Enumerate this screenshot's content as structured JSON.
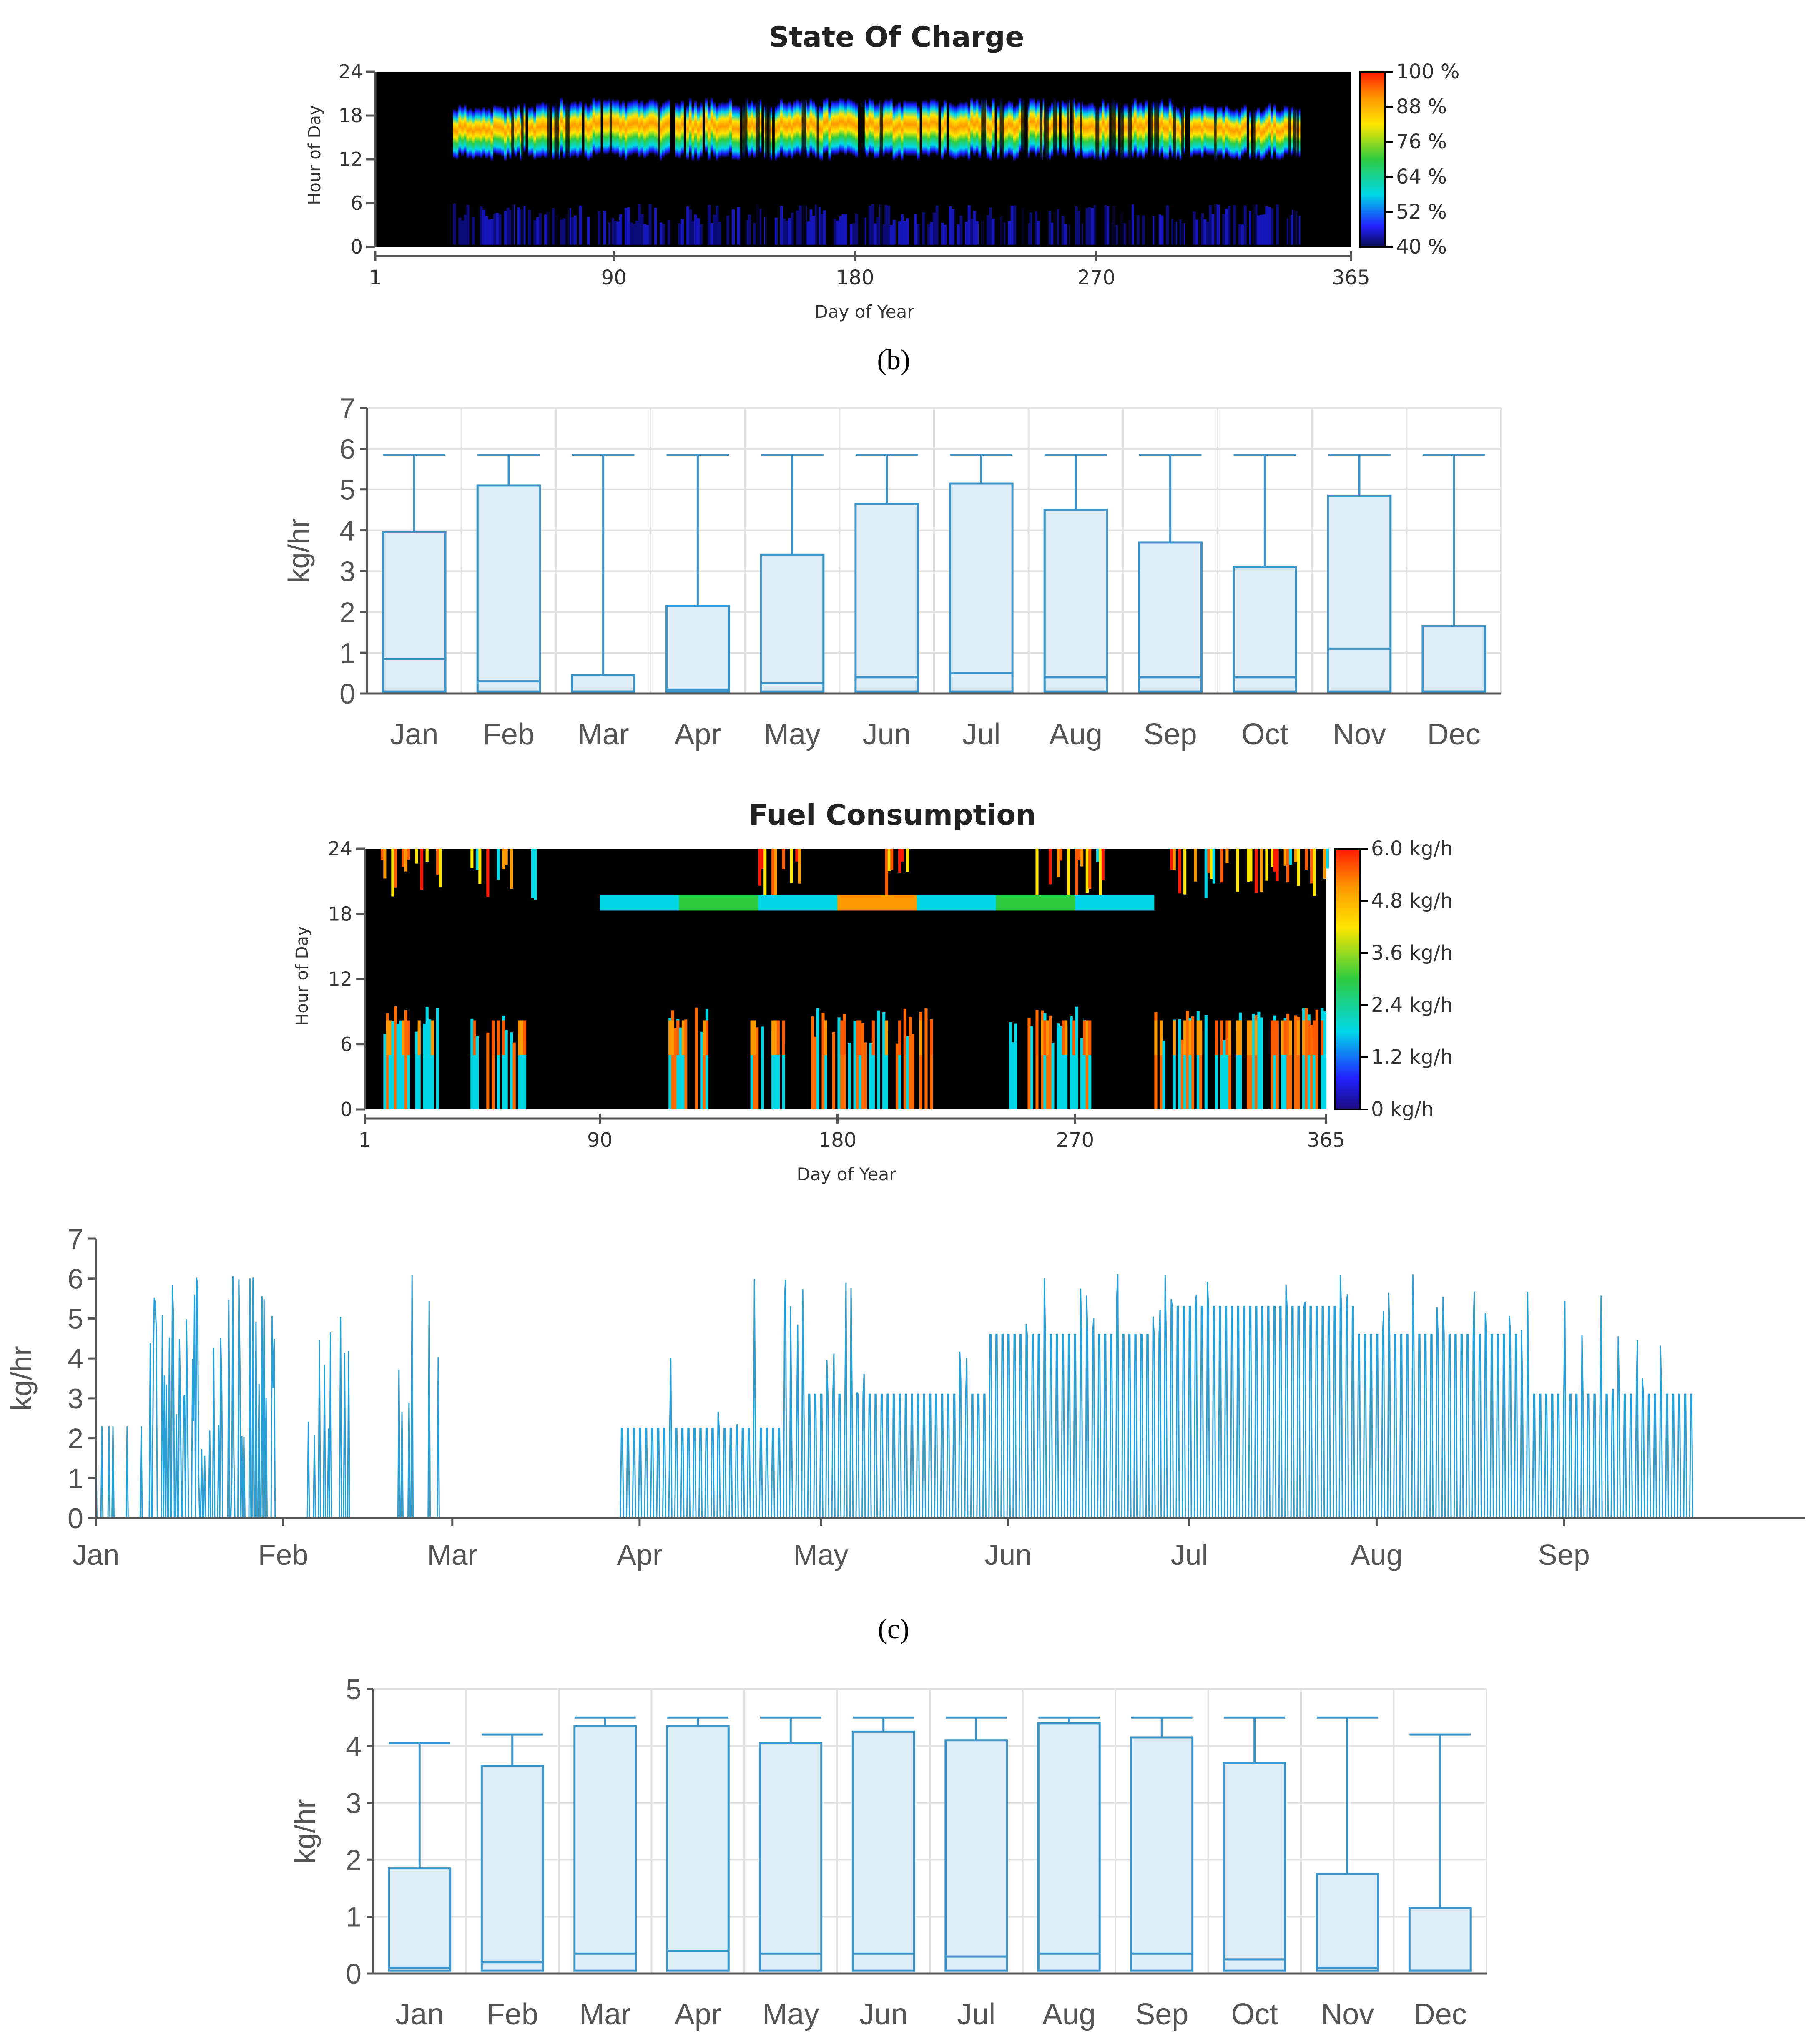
{
  "panel_labels": {
    "b": "(b)",
    "c": "(c)"
  },
  "chart_data": [
    {
      "id": "soc_heatmap",
      "type": "heatmap",
      "title": "State Of Charge",
      "xlabel": "Day of Year",
      "ylabel": "Hour of Day",
      "x_ticks": [
        "1",
        "90",
        "180",
        "270",
        "365"
      ],
      "y_ticks": [
        "0",
        "6",
        "12",
        "18",
        "24"
      ],
      "xlim": [
        1,
        365
      ],
      "ylim": [
        0,
        24
      ],
      "colorbar": {
        "labels": [
          "100 %",
          "88 %",
          "76 %",
          "64 %",
          "52 %",
          "40 %"
        ],
        "values": [
          100,
          88,
          76,
          64,
          52,
          40
        ],
        "colors": [
          "#ff1a00",
          "#ff9900",
          "#ffe600",
          "#2ecc40",
          "#00d8e8",
          "#2222ff"
        ]
      },
      "pattern": {
        "description_free": true,
        "day_band_hours": [
          8,
          20
        ],
        "peak_hour": 16,
        "night_low_band_hours": [
          0,
          7
        ],
        "active_days": [
          30,
          345
        ]
      }
    },
    {
      "id": "box_top",
      "type": "box",
      "ylabel": "kg/hr",
      "ylim": [
        0,
        7
      ],
      "y_ticks": [
        "0",
        "1",
        "2",
        "3",
        "4",
        "5",
        "6",
        "7"
      ],
      "categories": [
        "Jan",
        "Feb",
        "Mar",
        "Apr",
        "May",
        "Jun",
        "Jul",
        "Aug",
        "Sep",
        "Oct",
        "Nov",
        "Dec"
      ],
      "boxes": [
        {
          "min": 0.05,
          "q1": 0.05,
          "median": 0.85,
          "q3": 3.95,
          "max": 5.85
        },
        {
          "min": 0.05,
          "q1": 0.05,
          "median": 0.3,
          "q3": 5.1,
          "max": 5.85
        },
        {
          "min": 0.05,
          "q1": 0.05,
          "median": 0.05,
          "q3": 0.45,
          "max": 5.85
        },
        {
          "min": 0.05,
          "q1": 0.05,
          "median": 0.1,
          "q3": 2.15,
          "max": 5.85
        },
        {
          "min": 0.05,
          "q1": 0.05,
          "median": 0.25,
          "q3": 3.4,
          "max": 5.85
        },
        {
          "min": 0.05,
          "q1": 0.05,
          "median": 0.4,
          "q3": 4.65,
          "max": 5.85
        },
        {
          "min": 0.05,
          "q1": 0.05,
          "median": 0.5,
          "q3": 5.15,
          "max": 5.85
        },
        {
          "min": 0.05,
          "q1": 0.05,
          "median": 0.4,
          "q3": 4.5,
          "max": 5.85
        },
        {
          "min": 0.05,
          "q1": 0.05,
          "median": 0.4,
          "q3": 3.7,
          "max": 5.85
        },
        {
          "min": 0.05,
          "q1": 0.05,
          "median": 0.4,
          "q3": 3.1,
          "max": 5.85
        },
        {
          "min": 0.05,
          "q1": 0.05,
          "median": 1.1,
          "q3": 4.85,
          "max": 5.85
        },
        {
          "min": 0.05,
          "q1": 0.05,
          "median": 0.05,
          "q3": 1.65,
          "max": 5.85
        }
      ]
    },
    {
      "id": "fuel_heatmap",
      "type": "heatmap",
      "title": "Fuel Consumption",
      "xlabel": "Day of Year",
      "ylabel": "Hour of Day",
      "x_ticks": [
        "1",
        "90",
        "180",
        "270",
        "365"
      ],
      "y_ticks": [
        "0",
        "6",
        "12",
        "18",
        "24"
      ],
      "xlim": [
        1,
        365
      ],
      "ylim": [
        0,
        24
      ],
      "colorbar": {
        "labels": [
          "6.0  kg/h",
          "4.8  kg/h",
          "3.6  kg/h",
          "2.4  kg/h",
          "1.2  kg/h",
          "0  kg/h"
        ],
        "values": [
          6.0,
          4.8,
          3.6,
          2.4,
          1.2,
          0
        ],
        "colors": [
          "#ff1a00",
          "#ff9900",
          "#ffe600",
          "#2ecc40",
          "#00d8e8",
          "#2222ff"
        ]
      },
      "evening_band": {
        "hour": 19,
        "segments": [
          {
            "from": 90,
            "to": 120,
            "color": "#00d8e8"
          },
          {
            "from": 120,
            "to": 150,
            "color": "#2ecc40"
          },
          {
            "from": 150,
            "to": 180,
            "color": "#00d8e8"
          },
          {
            "from": 180,
            "to": 210,
            "color": "#ff9900"
          },
          {
            "from": 210,
            "to": 240,
            "color": "#00d8e8"
          },
          {
            "from": 240,
            "to": 270,
            "color": "#2ecc40"
          },
          {
            "from": 270,
            "to": 300,
            "color": "#00d8e8"
          }
        ]
      }
    },
    {
      "id": "fuel_timeseries",
      "type": "line",
      "ylabel": "kg/hr",
      "ylim": [
        0,
        7
      ],
      "y_ticks": [
        "0",
        "1",
        "2",
        "3",
        "4",
        "5",
        "6",
        "7"
      ],
      "x_ticks": [
        "Jan",
        "Feb",
        "Mar",
        "Apr",
        "May",
        "Jun",
        "Jul",
        "Aug",
        "Sep"
      ],
      "segments": [
        {
          "from_day": 1,
          "to_day": 31,
          "level": "spiky",
          "max": 6.2
        },
        {
          "from_day": 31,
          "to_day": 59,
          "level": "sparse",
          "max": 6.2
        },
        {
          "from_day": 59,
          "to_day": 88,
          "level": "zero"
        },
        {
          "from_day": 88,
          "to_day": 118,
          "level": 2.25
        },
        {
          "from_day": 118,
          "to_day": 149,
          "level": 3.1
        },
        {
          "from_day": 149,
          "to_day": 179,
          "level": 4.6
        },
        {
          "from_day": 179,
          "to_day": 210,
          "level": 5.3
        },
        {
          "from_day": 210,
          "to_day": 237,
          "level": 4.6
        },
        {
          "from_day": 237,
          "to_day": 266,
          "level": 3.1
        }
      ]
    },
    {
      "id": "box_bottom",
      "type": "box",
      "ylabel": "kg/hr",
      "ylim": [
        0,
        5
      ],
      "y_ticks": [
        "0",
        "1",
        "2",
        "3",
        "4",
        "5"
      ],
      "categories": [
        "Jan",
        "Feb",
        "Mar",
        "Apr",
        "May",
        "Jun",
        "Jul",
        "Aug",
        "Sep",
        "Oct",
        "Nov",
        "Dec"
      ],
      "boxes": [
        {
          "min": 0.05,
          "q1": 0.05,
          "median": 0.1,
          "q3": 1.85,
          "max": 4.05
        },
        {
          "min": 0.05,
          "q1": 0.05,
          "median": 0.2,
          "q3": 3.65,
          "max": 4.2
        },
        {
          "min": 0.05,
          "q1": 0.05,
          "median": 0.35,
          "q3": 4.35,
          "max": 4.5
        },
        {
          "min": 0.05,
          "q1": 0.05,
          "median": 0.4,
          "q3": 4.35,
          "max": 4.5
        },
        {
          "min": 0.05,
          "q1": 0.05,
          "median": 0.35,
          "q3": 4.05,
          "max": 4.5
        },
        {
          "min": 0.05,
          "q1": 0.05,
          "median": 0.35,
          "q3": 4.25,
          "max": 4.5
        },
        {
          "min": 0.05,
          "q1": 0.05,
          "median": 0.3,
          "q3": 4.1,
          "max": 4.5
        },
        {
          "min": 0.05,
          "q1": 0.05,
          "median": 0.35,
          "q3": 4.4,
          "max": 4.5
        },
        {
          "min": 0.05,
          "q1": 0.05,
          "median": 0.35,
          "q3": 4.15,
          "max": 4.5
        },
        {
          "min": 0.05,
          "q1": 0.05,
          "median": 0.25,
          "q3": 3.7,
          "max": 4.5
        },
        {
          "min": 0.05,
          "q1": 0.05,
          "median": 0.1,
          "q3": 1.75,
          "max": 4.5
        },
        {
          "min": 0.05,
          "q1": 0.05,
          "median": 0.05,
          "q3": 1.15,
          "max": 4.2
        }
      ]
    }
  ]
}
